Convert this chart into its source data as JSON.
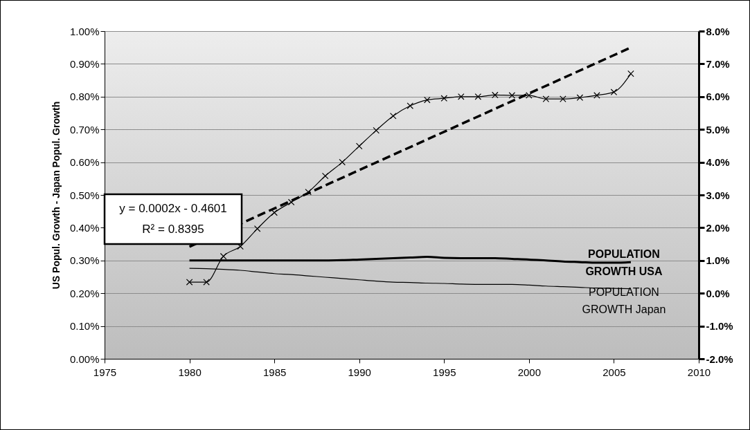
{
  "chart_data": {
    "type": "line",
    "ylabel": "US Popul. Growth - Japan Popul. Growth",
    "x": [
      1980,
      1981,
      1982,
      1983,
      1984,
      1985,
      1986,
      1987,
      1988,
      1989,
      1990,
      1991,
      1992,
      1993,
      1994,
      1995,
      1996,
      1997,
      1998,
      1999,
      2000,
      2001,
      2002,
      2003,
      2004,
      2005,
      2006
    ],
    "series": [
      {
        "color": "#000000",
        "marker": "cross",
        "values": [
          0.234,
          0.234,
          0.313,
          0.343,
          0.397,
          0.446,
          0.478,
          0.509,
          0.558,
          0.6,
          0.649,
          0.697,
          0.741,
          0.772,
          0.79,
          0.795,
          0.8,
          0.8,
          0.805,
          0.804,
          0.804,
          0.793,
          0.793,
          0.797,
          0.804,
          0.814,
          0.87
        ]
      },
      {
        "type": "line",
        "color": "#000000",
        "line_style": "dashed",
        "x": [
          1980,
          2006
        ],
        "values": [
          0.342,
          0.95
        ]
      },
      {
        "name": "POPULATION GROWTH USA",
        "color": "#000000",
        "axis": "y2",
        "values": [
          1.0,
          1.0,
          1.0,
          1.0,
          1.0,
          1.0,
          1.0,
          1.0,
          1.0,
          1.01,
          1.03,
          1.05,
          1.07,
          1.09,
          1.11,
          1.08,
          1.07,
          1.07,
          1.07,
          1.05,
          1.03,
          1.0,
          0.97,
          0.95,
          0.93,
          0.93,
          0.95
        ]
      },
      {
        "name": "POPULATION GROWTH Japan",
        "color": "#000000",
        "axis": "y2",
        "values": [
          0.76,
          0.75,
          0.73,
          0.7,
          0.65,
          0.6,
          0.57,
          0.53,
          0.49,
          0.45,
          0.41,
          0.37,
          0.34,
          0.33,
          0.31,
          0.3,
          0.28,
          0.27,
          0.27,
          0.27,
          0.25,
          0.22,
          0.2,
          0.18,
          0.16,
          0.15,
          0.14
        ]
      }
    ],
    "xlim": [
      1975,
      2010
    ],
    "xticks": [
      1975,
      1980,
      1985,
      1990,
      1995,
      2000,
      2005,
      2010
    ],
    "ylim": [
      0,
      1
    ],
    "yticks": [
      {
        "value": 0,
        "label": "0.00%"
      },
      {
        "value": 0.1,
        "label": "0.10%"
      },
      {
        "value": 0.2,
        "label": "0.20%"
      },
      {
        "value": 0.3,
        "label": "0.30%"
      },
      {
        "value": 0.4,
        "label": "0.40%"
      },
      {
        "value": 0.5,
        "label": "0.50%"
      },
      {
        "value": 0.6,
        "label": "0.60%"
      },
      {
        "value": 0.7,
        "label": "0.70%"
      },
      {
        "value": 0.8,
        "label": "0.80%"
      },
      {
        "value": 0.9,
        "label": "0.90%"
      },
      {
        "value": 1,
        "label": "1.00%"
      }
    ],
    "y2lim": [
      -2,
      8
    ],
    "y2ticks": [
      {
        "value": -2,
        "label": "-2.0%"
      },
      {
        "value": -1,
        "label": "-1.0%"
      },
      {
        "value": 0,
        "label": "0.0%"
      },
      {
        "value": 1,
        "label": "1.0%"
      },
      {
        "value": 2,
        "label": "2.0%"
      },
      {
        "value": 3,
        "label": "3.0%"
      },
      {
        "value": 4,
        "label": "4.0%"
      },
      {
        "value": 5,
        "label": "5.0%"
      },
      {
        "value": 6,
        "label": "6.0%"
      },
      {
        "value": 7,
        "label": "7.0%"
      },
      {
        "value": 8,
        "label": "8.0%"
      }
    ],
    "grid": "y",
    "annotations": [
      "y = 0.0002x - 0.4601",
      "R² = 0.8395"
    ]
  }
}
